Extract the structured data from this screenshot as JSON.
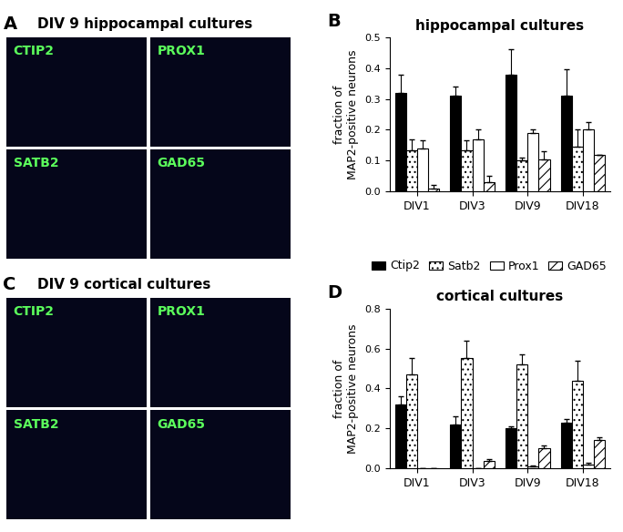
{
  "image_panels": [
    {
      "letter": "A",
      "title": "DIV 9 hippocampal cultures",
      "images": [
        "CTIP2",
        "PROX1",
        "SATB2",
        "GAD65"
      ]
    },
    {
      "letter": "C",
      "title": "DIV 9 cortical cultures",
      "images": [
        "CTIP2",
        "PROX1",
        "SATB2",
        "GAD65"
      ]
    }
  ],
  "chart_panel_letters": [
    "B",
    "D"
  ],
  "chart_data": [
    {
      "type": "bar",
      "title": "hippocampal cultures",
      "y_label": "fraction of\nMAP2-positive neurons",
      "categories": [
        "DIV1",
        "DIV3",
        "DIV9",
        "DIV18"
      ],
      "ylim": [
        0.0,
        0.5
      ],
      "yticks": [
        0.0,
        0.1,
        0.2,
        0.3,
        0.4,
        0.5
      ],
      "legend": "center right",
      "series": [
        {
          "name": "Ctip2",
          "color": "#000000",
          "values": [
            0.32,
            0.31,
            0.38,
            0.31
          ],
          "errors": [
            0.06,
            0.03,
            0.08,
            0.085
          ]
        },
        {
          "name": "Satb2",
          "color": "#ffffff",
          "values": [
            0.135,
            0.135,
            0.1,
            0.145
          ],
          "errors": [
            0.035,
            0.03,
            0.01,
            0.055
          ]
        },
        {
          "name": "Prox1",
          "color": "#ffffff",
          "values": [
            0.14,
            0.17,
            0.19,
            0.2
          ],
          "errors": [
            0.025,
            0.03,
            0.01,
            0.025
          ]
        },
        {
          "name": "GAD65",
          "color": "#ffffff",
          "values": [
            0.01,
            0.03,
            0.105,
            0.12
          ],
          "errors": [
            0.01,
            0.02,
            0.025,
            0.0
          ]
        }
      ]
    },
    {
      "type": "bar",
      "title": "cortical cultures",
      "y_label": "fraction of\nMAP2-positive neurons",
      "categories": [
        "DIV1",
        "DIV3",
        "DIV9",
        "DIV18"
      ],
      "ylim": [
        0.0,
        0.8
      ],
      "yticks": [
        0.0,
        0.2,
        0.4,
        0.6,
        0.8
      ],
      "series": [
        {
          "name": "Ctip2",
          "color": "#000000",
          "values": [
            0.32,
            0.22,
            0.2,
            0.23
          ],
          "errors": [
            0.04,
            0.04,
            0.01,
            0.015
          ]
        },
        {
          "name": "Satb2",
          "color": "#ffffff",
          "values": [
            0.47,
            0.55,
            0.52,
            0.44
          ],
          "errors": [
            0.08,
            0.09,
            0.05,
            0.1
          ]
        },
        {
          "name": "Prox1",
          "color": "#ffffff",
          "values": [
            0.0,
            0.0,
            0.01,
            0.02
          ],
          "errors": [
            0.0,
            0.0,
            0.005,
            0.005
          ]
        },
        {
          "name": "GAD65",
          "color": "#ffffff",
          "values": [
            0.0,
            0.035,
            0.1,
            0.14
          ],
          "errors": [
            0.0,
            0.01,
            0.015,
            0.015
          ]
        }
      ]
    }
  ]
}
